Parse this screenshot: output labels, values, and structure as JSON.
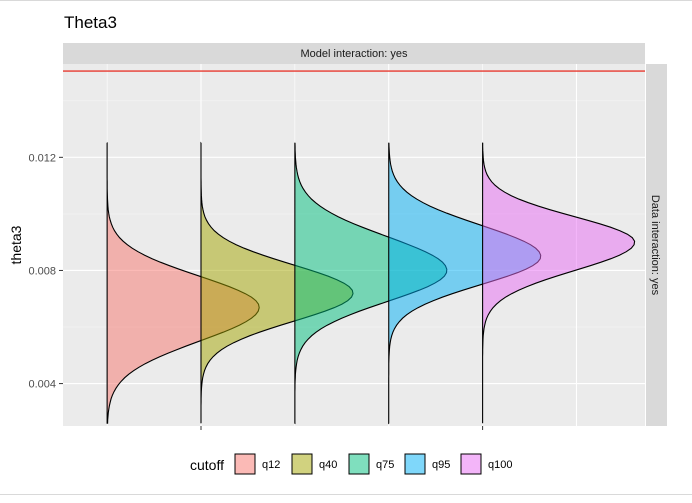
{
  "chart_data": {
    "type": "violin",
    "title": "Theta3",
    "ylabel": "theta3",
    "xlabel": "",
    "ylim": [
      0.0025,
      0.0153
    ],
    "yticks": [
      0.004,
      0.008,
      0.012
    ],
    "ytick_labels": [
      "0.004",
      "0.008",
      "0.012"
    ],
    "facet_top": "Model interaction: yes",
    "facet_right": "Data interaction: yes",
    "reference_line": {
      "y": 0.01505,
      "color": "#e8392f"
    },
    "grid": true,
    "legend": {
      "title": "cutoff",
      "position": "bottom",
      "entries": [
        "q12",
        "q40",
        "q75",
        "q95",
        "q100"
      ]
    },
    "series": [
      {
        "name": "q12",
        "color": "#f8766d",
        "ymin": 0.0026,
        "ymax": 0.0125,
        "mode": 0.0067,
        "sdlow": 0.0012,
        "sdhigh": 0.0011
      },
      {
        "name": "q40",
        "color": "#a3a500",
        "ymin": 0.0026,
        "ymax": 0.0125,
        "mode": 0.0072,
        "sdlow": 0.001,
        "sdhigh": 0.001
      },
      {
        "name": "q75",
        "color": "#00bf7d",
        "ymin": 0.0026,
        "ymax": 0.0125,
        "mode": 0.008,
        "sdlow": 0.0011,
        "sdhigh": 0.0012
      },
      {
        "name": "q95",
        "color": "#00b0f6",
        "ymin": 0.0026,
        "ymax": 0.0125,
        "mode": 0.0085,
        "sdlow": 0.001,
        "sdhigh": 0.0011
      },
      {
        "name": "q100",
        "color": "#e76bf3",
        "ymin": 0.0026,
        "ymax": 0.0125,
        "mode": 0.009,
        "sdlow": 0.001,
        "sdhigh": 0.0009
      }
    ]
  }
}
